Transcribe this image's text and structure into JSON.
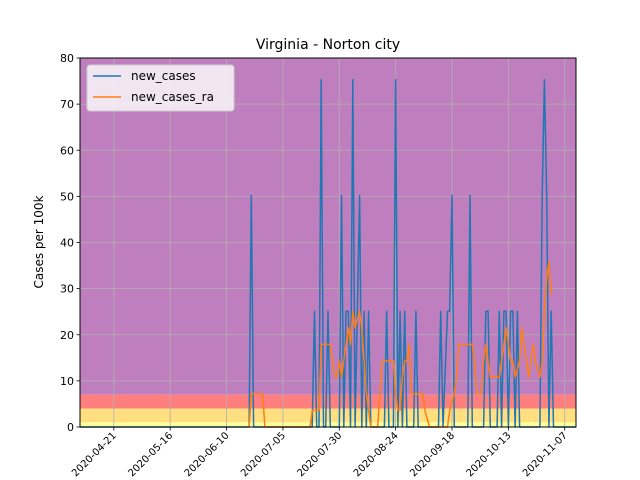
{
  "chart_data": {
    "type": "line",
    "title": "Virginia - Norton city",
    "xlabel": "",
    "ylabel": "Cases per 100k",
    "ylim": [
      0,
      80
    ],
    "yticks": [
      0,
      10,
      20,
      30,
      40,
      50,
      60,
      70,
      80
    ],
    "xlim": [
      -15,
      205
    ],
    "xticks": [
      {
        "x": 0,
        "label": "2020-04-21"
      },
      {
        "x": 25,
        "label": "2020-05-16"
      },
      {
        "x": 50,
        "label": "2020-06-10"
      },
      {
        "x": 75,
        "label": "2020-07-05"
      },
      {
        "x": 100,
        "label": "2020-07-30"
      },
      {
        "x": 125,
        "label": "2020-08-24"
      },
      {
        "x": 150,
        "label": "2020-09-18"
      },
      {
        "x": 175,
        "label": "2020-10-13"
      },
      {
        "x": 200,
        "label": "2020-11-07"
      }
    ],
    "grid": true,
    "legend_position": "top-left",
    "bands": [
      {
        "from": 7,
        "to": 80,
        "color": "#bf7fbf"
      },
      {
        "from": 4,
        "to": 7,
        "color": "#ff7f7f"
      },
      {
        "from": 1,
        "to": 4,
        "color": "#ffdf7f"
      },
      {
        "from": 0,
        "to": 1,
        "color": "#ffff99"
      }
    ],
    "series": [
      {
        "name": "new_cases",
        "color": "#1f77b4",
        "points": [
          [
            -15,
            0
          ],
          [
            60,
            0
          ],
          [
            61,
            50.2
          ],
          [
            62,
            0
          ],
          [
            88,
            0
          ],
          [
            89,
            25.1
          ],
          [
            90,
            0
          ],
          [
            91,
            0
          ],
          [
            92,
            75.3
          ],
          [
            93,
            0
          ],
          [
            94,
            0
          ],
          [
            95,
            25.1
          ],
          [
            96,
            0
          ],
          [
            100,
            0
          ],
          [
            101,
            50.2
          ],
          [
            102,
            0
          ],
          [
            103,
            25.1
          ],
          [
            104,
            25.1
          ],
          [
            105,
            0
          ],
          [
            106,
            75.3
          ],
          [
            107,
            0
          ],
          [
            108,
            25.1
          ],
          [
            109,
            50.2
          ],
          [
            110,
            0
          ],
          [
            111,
            25.1
          ],
          [
            112,
            0
          ],
          [
            113,
            25.1
          ],
          [
            114,
            0
          ],
          [
            120,
            0
          ],
          [
            121,
            25.1
          ],
          [
            122,
            0
          ],
          [
            124,
            0
          ],
          [
            125,
            75.3
          ],
          [
            126,
            0
          ],
          [
            127,
            25.1
          ],
          [
            128,
            0
          ],
          [
            129,
            25.1
          ],
          [
            130,
            0
          ],
          [
            133,
            0
          ],
          [
            134,
            25.1
          ],
          [
            135,
            0
          ],
          [
            144,
            0
          ],
          [
            145,
            25.1
          ],
          [
            146,
            0
          ],
          [
            148,
            25.1
          ],
          [
            149,
            25.1
          ],
          [
            150,
            50.2
          ],
          [
            151,
            0
          ],
          [
            157,
            0
          ],
          [
            158,
            50.2
          ],
          [
            159,
            0
          ],
          [
            164,
            0
          ],
          [
            165,
            25.1
          ],
          [
            166,
            25.1
          ],
          [
            167,
            0
          ],
          [
            170,
            0
          ],
          [
            171,
            25.1
          ],
          [
            172,
            0
          ],
          [
            173,
            25.1
          ],
          [
            174,
            25.1
          ],
          [
            175,
            0
          ],
          [
            176,
            25.1
          ],
          [
            177,
            25.1
          ],
          [
            178,
            0
          ],
          [
            179,
            25.1
          ],
          [
            180,
            0
          ],
          [
            189,
            0
          ],
          [
            190,
            50.2
          ],
          [
            191,
            75.3
          ],
          [
            192,
            50.2
          ],
          [
            193,
            0
          ],
          [
            194,
            25.1
          ],
          [
            195,
            0
          ],
          [
            205,
            0
          ]
        ]
      },
      {
        "name": "new_cases_ra",
        "color": "#ff7f0e",
        "points": [
          [
            60,
            0
          ],
          [
            61,
            7.2
          ],
          [
            66,
            7.2
          ],
          [
            67,
            0
          ],
          [
            87,
            0
          ],
          [
            88,
            3.6
          ],
          [
            91,
            3.6
          ],
          [
            92,
            17.9
          ],
          [
            96,
            17.9
          ],
          [
            97,
            14.3
          ],
          [
            98,
            10.8
          ],
          [
            99,
            10.8
          ],
          [
            100,
            14.3
          ],
          [
            101,
            10.8
          ],
          [
            103,
            17.9
          ],
          [
            104,
            21.5
          ],
          [
            105,
            17.9
          ],
          [
            106,
            25.1
          ],
          [
            107,
            21.5
          ],
          [
            109,
            25.1
          ],
          [
            110,
            21.5
          ],
          [
            111,
            14.3
          ],
          [
            112,
            7.2
          ],
          [
            113,
            3.6
          ],
          [
            114,
            0
          ],
          [
            117,
            0
          ],
          [
            118,
            7.2
          ],
          [
            119,
            14.3
          ],
          [
            124,
            14.3
          ],
          [
            125,
            7.2
          ],
          [
            126,
            3.6
          ],
          [
            127,
            3.6
          ],
          [
            128,
            10.8
          ],
          [
            129,
            14.3
          ],
          [
            130,
            14.3
          ],
          [
            131,
            17.9
          ],
          [
            132,
            7.2
          ],
          [
            137,
            7.2
          ],
          [
            138,
            3.6
          ],
          [
            140,
            0
          ],
          [
            148,
            0
          ],
          [
            149,
            3.6
          ],
          [
            151,
            7.2
          ],
          [
            152,
            10.8
          ],
          [
            153,
            17.9
          ],
          [
            159,
            17.9
          ],
          [
            160,
            14.3
          ],
          [
            161,
            7.2
          ],
          [
            163,
            7.2
          ],
          [
            164,
            14.3
          ],
          [
            165,
            17.9
          ],
          [
            166,
            14.3
          ],
          [
            167,
            10.8
          ],
          [
            171,
            10.8
          ],
          [
            172,
            14.3
          ],
          [
            173,
            17.9
          ],
          [
            174,
            21.5
          ],
          [
            175,
            17.9
          ],
          [
            176,
            14.3
          ],
          [
            177,
            14.3
          ],
          [
            178,
            10.8
          ],
          [
            180,
            14.3
          ],
          [
            181,
            21.5
          ],
          [
            182,
            17.9
          ],
          [
            183,
            14.3
          ],
          [
            184,
            10.8
          ],
          [
            185,
            14.3
          ],
          [
            186,
            17.9
          ],
          [
            187,
            14.3
          ],
          [
            189,
            10.8
          ],
          [
            190,
            14.3
          ],
          [
            191,
            25.1
          ],
          [
            192,
            32.3
          ],
          [
            193,
            35.8
          ],
          [
            194,
            28.7
          ]
        ]
      }
    ]
  }
}
